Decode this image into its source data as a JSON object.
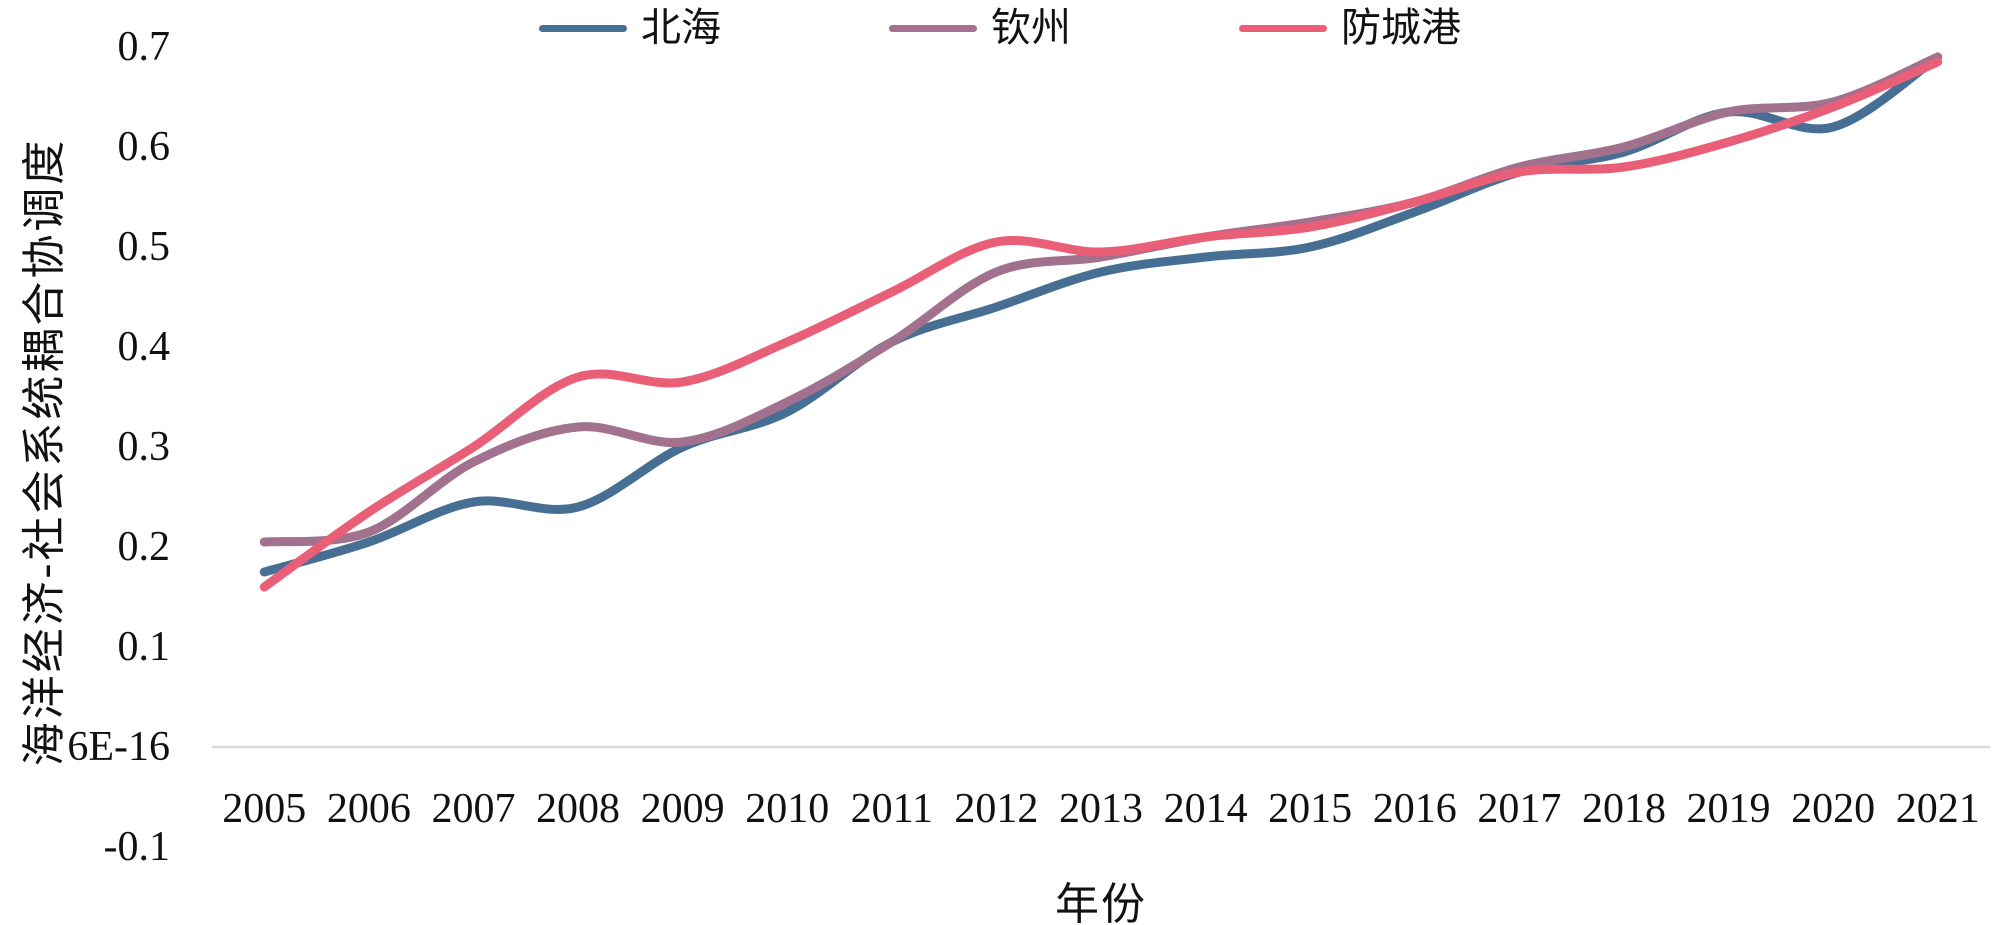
{
  "chart_data": {
    "type": "line",
    "title": "",
    "xlabel": "年份",
    "ylabel": "海洋经济-社会系统耦合协调度",
    "x": [
      "2005",
      "2006",
      "2007",
      "2008",
      "2009",
      "2010",
      "2011",
      "2012",
      "2013",
      "2014",
      "2015",
      "2016",
      "2017",
      "2018",
      "2019",
      "2020",
      "2021"
    ],
    "series": [
      {
        "name": "北海",
        "color": "#476f94",
        "values": [
          0.175,
          0.205,
          0.245,
          0.24,
          0.3,
          0.335,
          0.405,
          0.44,
          0.475,
          0.49,
          0.5,
          0.535,
          0.575,
          0.595,
          0.635,
          0.62,
          0.69
        ]
      },
      {
        "name": "钦州",
        "color": "#a1718e",
        "values": [
          0.205,
          0.215,
          0.285,
          0.32,
          0.305,
          0.345,
          0.405,
          0.475,
          0.49,
          0.51,
          0.525,
          0.545,
          0.58,
          0.6,
          0.635,
          0.645,
          0.69
        ]
      },
      {
        "name": "防城港",
        "color": "#ea5f78",
        "values": [
          0.16,
          0.235,
          0.3,
          0.37,
          0.365,
          0.405,
          0.455,
          0.505,
          0.495,
          0.51,
          0.52,
          0.545,
          0.575,
          0.58,
          0.605,
          0.64,
          0.685
        ]
      }
    ],
    "yticks": [
      {
        "label": "0.7",
        "value": 0.7
      },
      {
        "label": "0.6",
        "value": 0.6
      },
      {
        "label": "0.5",
        "value": 0.5
      },
      {
        "label": "0.4",
        "value": 0.4
      },
      {
        "label": "0.3",
        "value": 0.3
      },
      {
        "label": "0.2",
        "value": 0.2
      },
      {
        "label": "0.1",
        "value": 0.1
      },
      {
        "label": "6E-16",
        "value": 0
      },
      {
        "label": "-0.1",
        "value": -0.1
      }
    ],
    "ylim": [
      -0.1,
      0.7
    ],
    "grid": "zero-axis-line-only",
    "zero_line_color": "#d9d9d9",
    "legend_position": "top-center"
  }
}
